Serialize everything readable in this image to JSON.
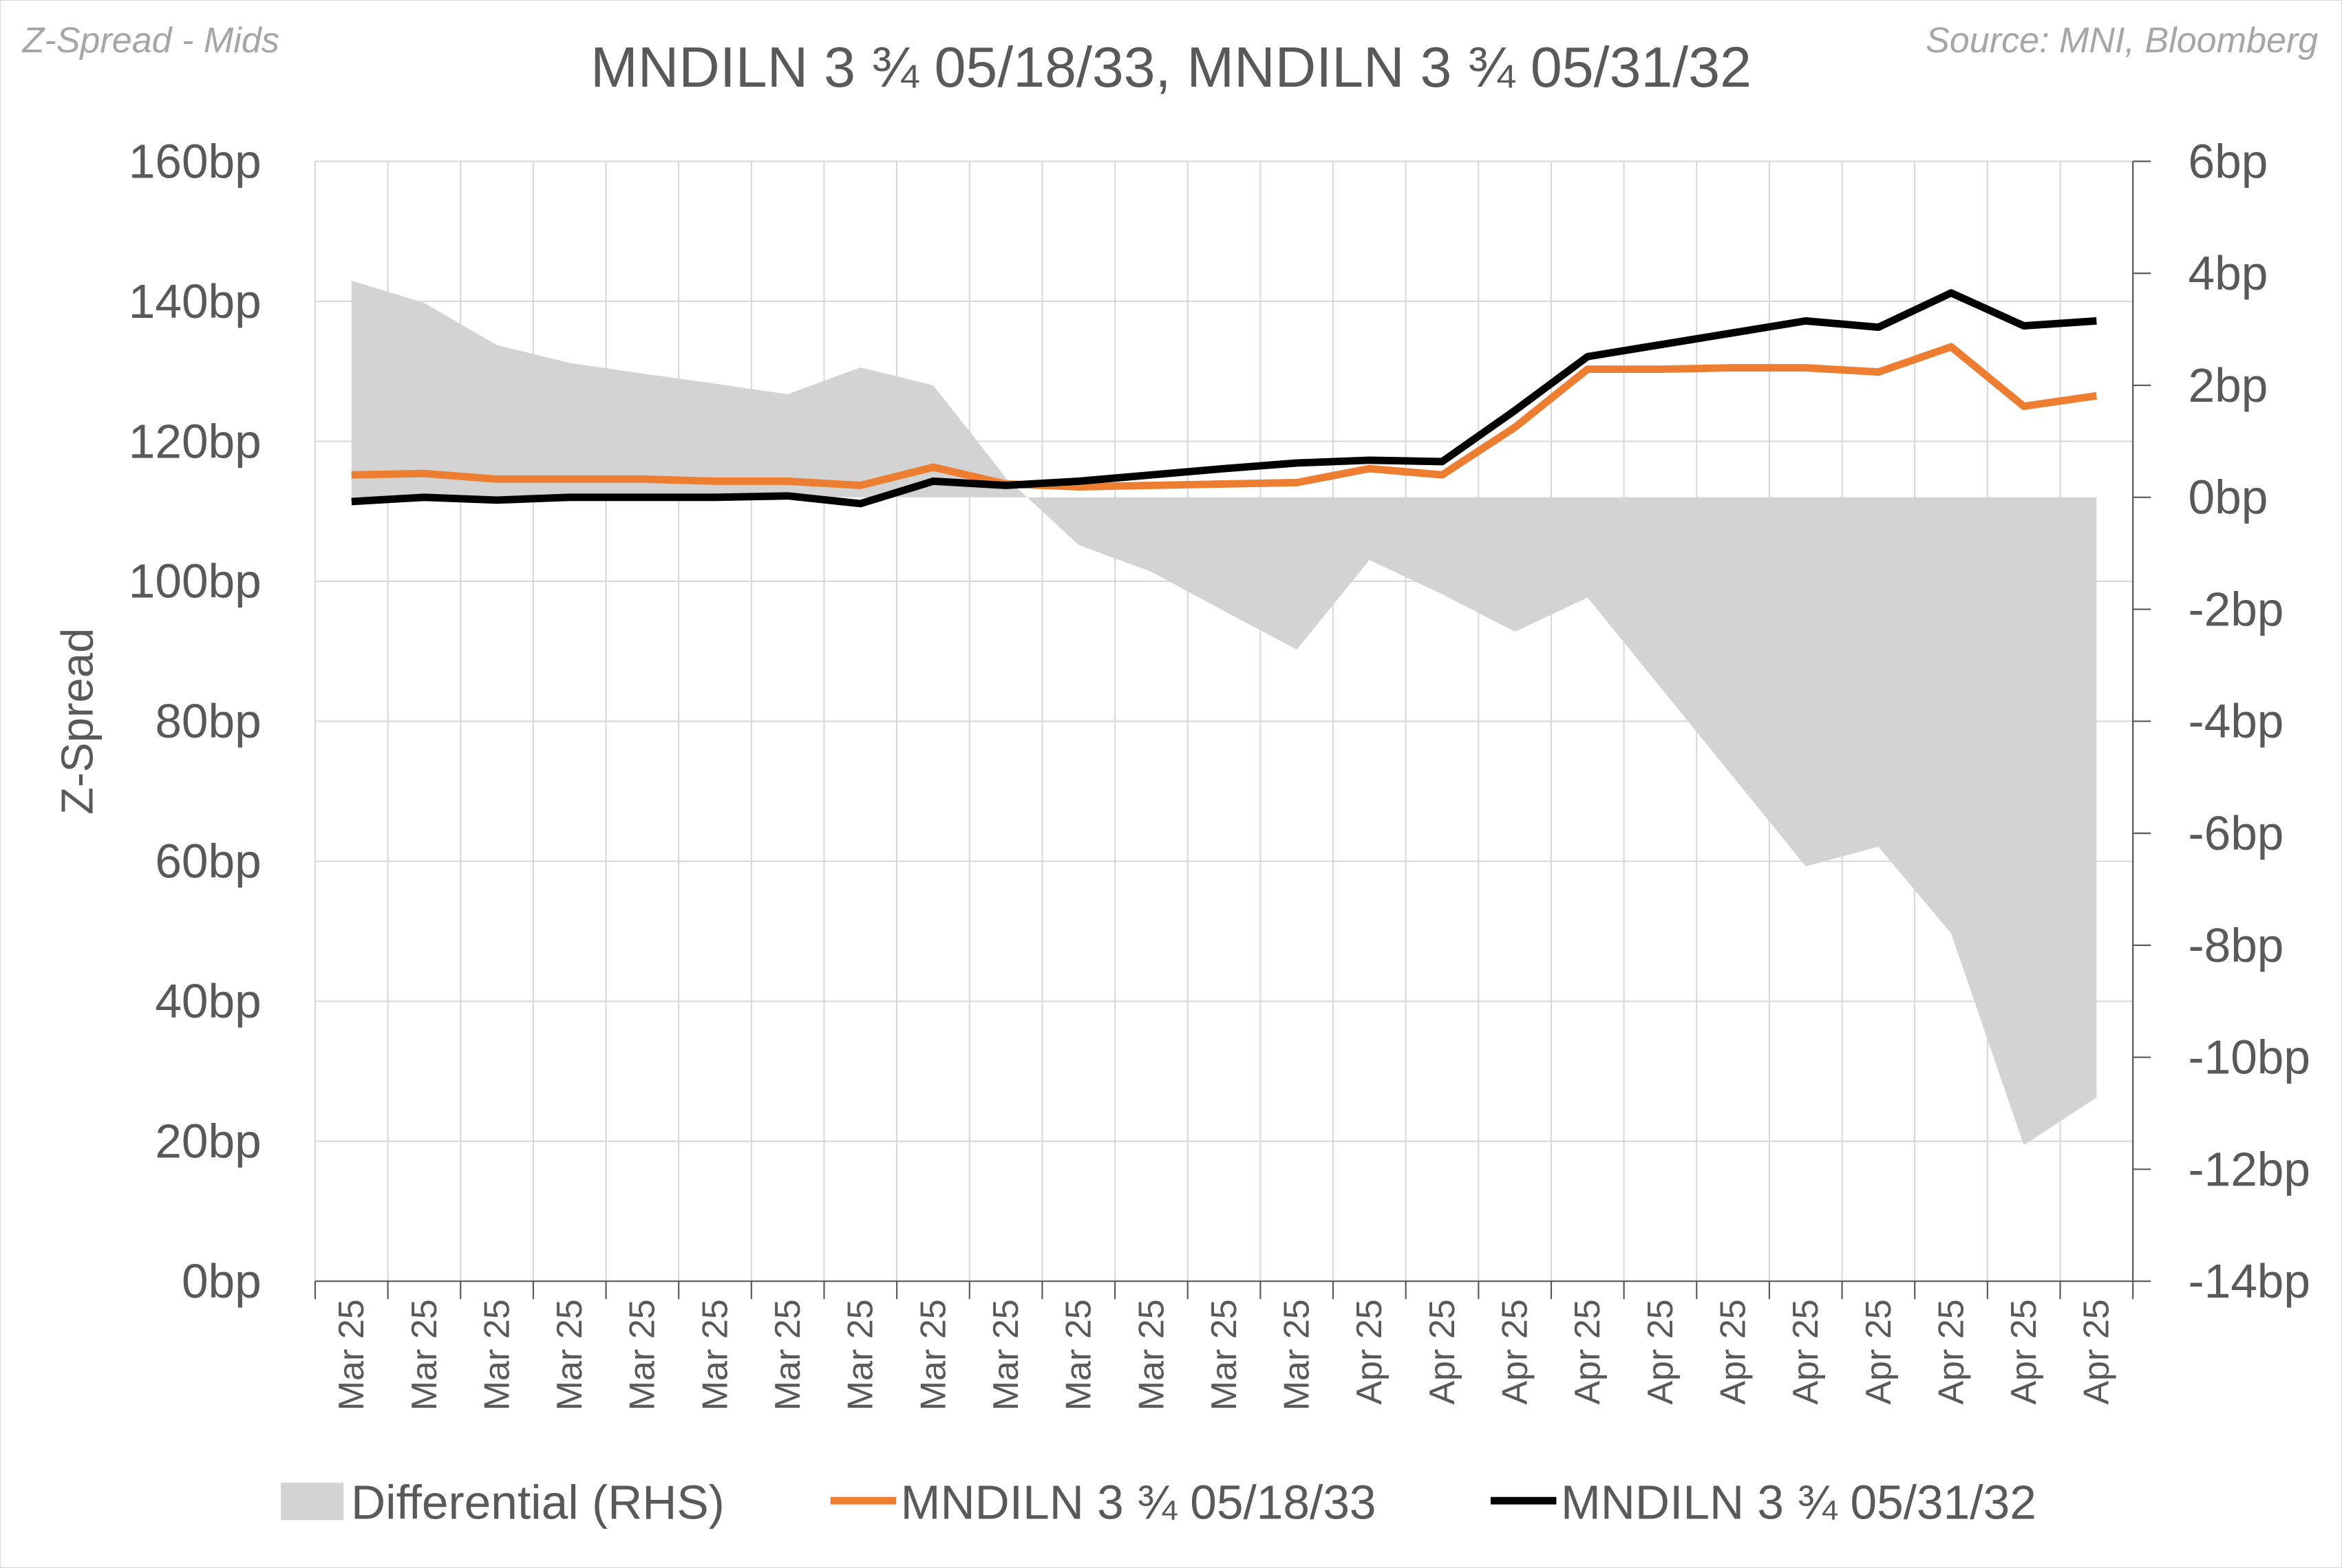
{
  "header": {
    "note": "Z-Spread - Mids",
    "title": "MNDILN 3 ¾ 05/18/33, MNDILN 3 ¾ 05/31/32",
    "source": "Source: MNI, Bloomberg"
  },
  "chart_data": {
    "type": "line",
    "title": "MNDILN 3 ¾ 05/18/33, MNDILN 3 ¾ 05/31/32",
    "ylabel": "Z-Spread",
    "ylim": [
      0,
      160
    ],
    "y_ticks": [
      "0bp",
      "20bp",
      "40bp",
      "60bp",
      "80bp",
      "100bp",
      "120bp",
      "140bp",
      "160bp"
    ],
    "y2lim": [
      -14,
      6
    ],
    "y2_ticks": [
      "-14bp",
      "-12bp",
      "-10bp",
      "-8bp",
      "-6bp",
      "-4bp",
      "-2bp",
      "0bp",
      "2bp",
      "4bp",
      "6bp"
    ],
    "grid": true,
    "legend_position": "bottom",
    "categories": [
      "Mar 25",
      "Mar 25",
      "Mar 25",
      "Mar 25",
      "Mar 25",
      "Mar 25",
      "Mar 25",
      "Mar 25",
      "Mar 25",
      "Mar 25",
      "Mar 25",
      "Mar 25",
      "Mar 25",
      "Mar 25",
      "Apr 25",
      "Apr 25",
      "Apr 25",
      "Apr 25",
      "Apr 25",
      "Apr 25",
      "Apr 25",
      "Apr 25",
      "Apr 25",
      "Apr 25",
      "Apr 25"
    ],
    "series": [
      {
        "name": "Differential (RHS)",
        "type": "area",
        "axis": "right",
        "color": "#d3d3d3",
        "values": [
          3.87,
          3.47,
          2.72,
          2.4,
          2.21,
          2.03,
          1.84,
          2.32,
          2.0,
          0.35,
          -0.85,
          -1.33,
          -2.03,
          -2.72,
          -1.12,
          -1.73,
          -2.4,
          -1.79,
          -3.39,
          -4.99,
          -6.59,
          -6.24,
          -7.79,
          -11.57,
          -10.72
        ]
      },
      {
        "name": "MNDILN 3 ¾ 05/18/33",
        "type": "line",
        "axis": "left",
        "color": "#ed7d31",
        "values": [
          115.2,
          115.4,
          114.6,
          114.6,
          114.6,
          114.3,
          114.3,
          113.7,
          116.3,
          113.9,
          113.5,
          113.7,
          113.9,
          114.1,
          116.1,
          115.2,
          122.0,
          130.3,
          130.3,
          130.5,
          130.5,
          129.9,
          133.5,
          125.0,
          126.5
        ]
      },
      {
        "name": "MNDILN 3 ¾ 05/31/32",
        "type": "line",
        "axis": "left",
        "color": "#000000",
        "values": [
          111.4,
          112.0,
          111.6,
          112.0,
          112.0,
          112.0,
          112.2,
          111.1,
          114.3,
          113.7,
          114.3,
          115.2,
          116.1,
          116.9,
          117.3,
          117.1,
          124.4,
          132.1,
          133.8,
          135.5,
          137.2,
          136.3,
          141.2,
          136.5,
          137.2
        ]
      }
    ]
  }
}
